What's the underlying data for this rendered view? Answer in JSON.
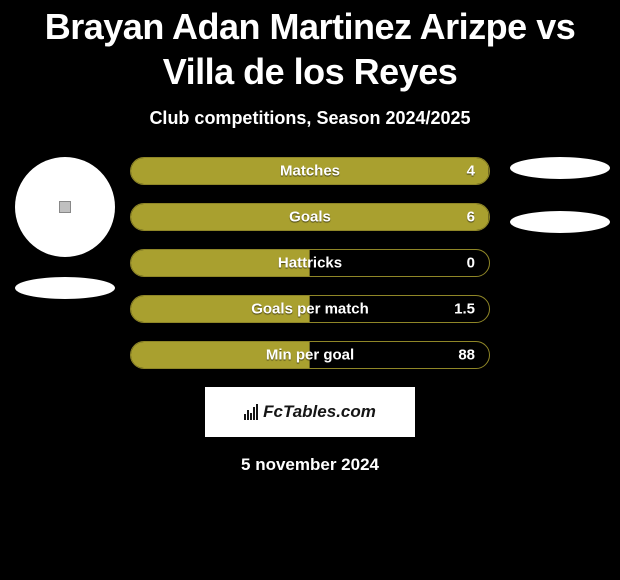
{
  "title": "Brayan Adan Martinez Arizpe vs Villa de los Reyes",
  "subtitle": "Club competitions, Season 2024/2025",
  "date": "5 november 2024",
  "logo_text": "FcTables.com",
  "colors": {
    "background": "#000000",
    "bar_fill": "#a9a02f",
    "bar_border": "#8f8627",
    "text": "#ffffff"
  },
  "stats": [
    {
      "label": "Matches",
      "value": "4",
      "fill_percent": 100
    },
    {
      "label": "Goals",
      "value": "6",
      "fill_percent": 100
    },
    {
      "label": "Hattricks",
      "value": "0",
      "fill_percent": 50
    },
    {
      "label": "Goals per match",
      "value": "1.5",
      "fill_percent": 50
    },
    {
      "label": "Min per goal",
      "value": "88",
      "fill_percent": 50
    }
  ]
}
